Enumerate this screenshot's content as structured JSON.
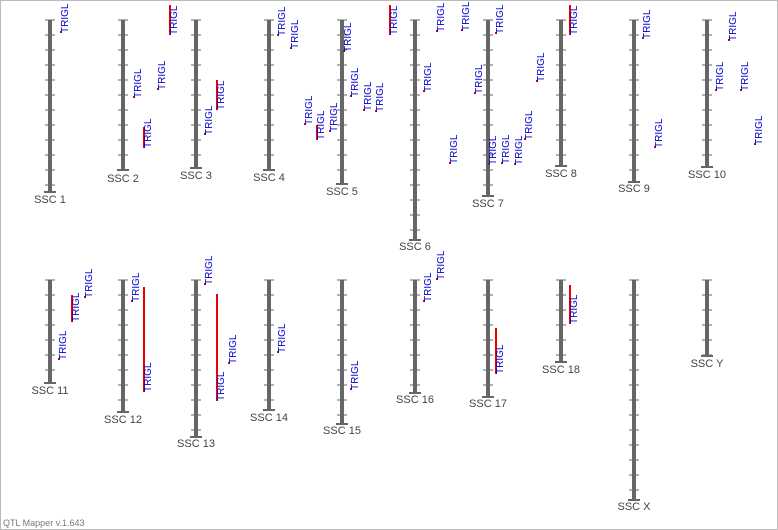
{
  "chromosomes": [
    {
      "name": "SSC 1",
      "qtls": [
        "TRIGL"
      ]
    },
    {
      "name": "SSC 2",
      "qtls": [
        "TRIGL",
        "TRIGL",
        "TRIGL"
      ]
    },
    {
      "name": "SSC 3",
      "qtls": [
        "TRIGL",
        "TRIGL",
        "TRIGL"
      ]
    },
    {
      "name": "SSC 4",
      "qtls": [
        "TRIGL",
        "TRIGL",
        "TRIGL",
        "TRIGL",
        "TRIGL"
      ]
    },
    {
      "name": "SSC 5",
      "qtls": [
        "TRIGL",
        "TRIGL",
        "TRIGL",
        "TRIGL",
        "TRIGL"
      ]
    },
    {
      "name": "SSC 6",
      "qtls": [
        "TRIGL",
        "TRIGL",
        "TRIGL",
        "TRIGL"
      ]
    },
    {
      "name": "SSC 7",
      "qtls": [
        "TRIGL",
        "TRIGL",
        "TRIGL",
        "TRIGL",
        "TRIGL",
        "TRIGL",
        "TRIGL"
      ]
    },
    {
      "name": "SSC 8",
      "qtls": [
        "TRIGL"
      ]
    },
    {
      "name": "SSC 9",
      "qtls": [
        "TRIGL",
        "TRIGL"
      ]
    },
    {
      "name": "SSC 10",
      "qtls": [
        "TRIGL",
        "TRIGL",
        "TRIGL",
        "TRIGL"
      ]
    },
    {
      "name": "SSC 11",
      "qtls": [
        "TRIGL",
        "TRIGL",
        "TRIGL"
      ]
    },
    {
      "name": "SSC 12",
      "qtls": [
        "TRIGL",
        "TRIGL"
      ]
    },
    {
      "name": "SSC 13",
      "qtls": [
        "TRIGL",
        "TRIGL",
        "TRIGL"
      ]
    },
    {
      "name": "SSC 14",
      "qtls": [
        "TRIGL"
      ]
    },
    {
      "name": "SSC 15",
      "qtls": [
        "TRIGL"
      ]
    },
    {
      "name": "SSC 16",
      "qtls": [
        "TRIGL",
        "TRIGL"
      ]
    },
    {
      "name": "SSC 17",
      "qtls": [
        "TRIGL"
      ]
    },
    {
      "name": "SSC 18",
      "qtls": [
        "TRIGL"
      ]
    },
    {
      "name": "SSC X",
      "qtls": []
    },
    {
      "name": "SSC Y",
      "qtls": []
    }
  ],
  "footer": "QTL Mapper v.1.643"
}
